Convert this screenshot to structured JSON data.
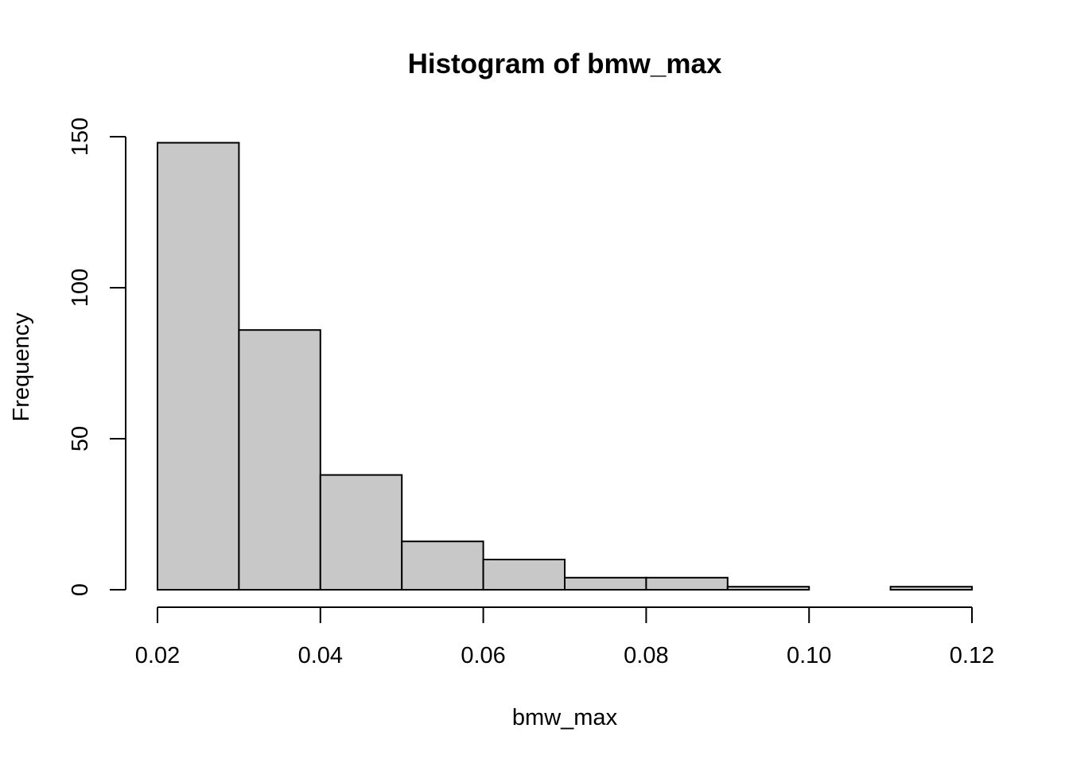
{
  "chart_data": {
    "type": "bar",
    "title": "Histogram of bmw_max",
    "xlabel": "bmw_max",
    "ylabel": "Frequency",
    "bins": [
      {
        "start": 0.02,
        "end": 0.03,
        "count": 148
      },
      {
        "start": 0.03,
        "end": 0.04,
        "count": 86
      },
      {
        "start": 0.04,
        "end": 0.05,
        "count": 38
      },
      {
        "start": 0.05,
        "end": 0.06,
        "count": 16
      },
      {
        "start": 0.06,
        "end": 0.07,
        "count": 10
      },
      {
        "start": 0.07,
        "end": 0.08,
        "count": 4
      },
      {
        "start": 0.08,
        "end": 0.09,
        "count": 4
      },
      {
        "start": 0.09,
        "end": 0.1,
        "count": 1
      },
      {
        "start": 0.1,
        "end": 0.11,
        "count": 0
      },
      {
        "start": 0.11,
        "end": 0.12,
        "count": 1
      }
    ],
    "xlim": [
      0.02,
      0.12
    ],
    "ylim": [
      0,
      150
    ],
    "x_ticks": [
      0.02,
      0.04,
      0.06,
      0.08,
      0.1,
      0.12
    ],
    "x_tick_labels": [
      "0.02",
      "0.04",
      "0.06",
      "0.08",
      "0.10",
      "0.12"
    ],
    "y_ticks": [
      0,
      50,
      100,
      150
    ],
    "y_tick_labels": [
      "0",
      "50",
      "100",
      "150"
    ],
    "bar_color": "#c8c8c8",
    "bar_edge_color": "#000000",
    "grid": false,
    "legend": "none"
  }
}
